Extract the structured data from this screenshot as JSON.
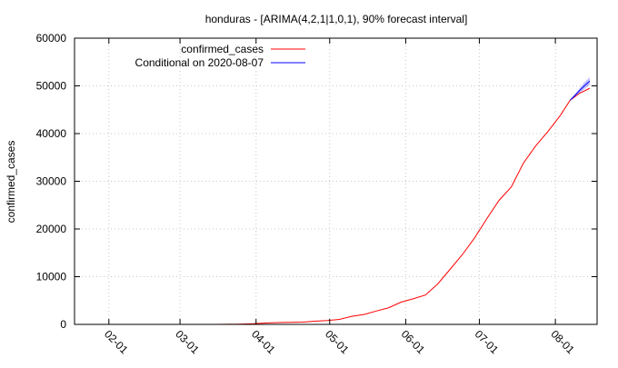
{
  "chart_data": {
    "type": "line",
    "title": "honduras -  [ARIMA(4,2,1|1,0,1), 90% forecast interval]",
    "xlabel": "",
    "ylabel": "confirmed_cases",
    "ylim": [
      0,
      60000
    ],
    "yticks": [
      "0",
      "10000",
      "20000",
      "30000",
      "40000",
      "50000",
      "60000"
    ],
    "xlim": [
      "2020-01-18",
      "2020-08-18"
    ],
    "xticks": [
      {
        "date": "2020-02-01",
        "label": "02-01"
      },
      {
        "date": "2020-03-01",
        "label": "03-01"
      },
      {
        "date": "2020-04-01",
        "label": "04-01"
      },
      {
        "date": "2020-05-01",
        "label": "05-01"
      },
      {
        "date": "2020-06-01",
        "label": "06-01"
      },
      {
        "date": "2020-07-01",
        "label": "07-01"
      },
      {
        "date": "2020-08-01",
        "label": "08-01"
      }
    ],
    "grid": true,
    "legend_position": "top-left",
    "series": [
      {
        "name": "confirmed_cases",
        "color": "#ff0000",
        "points": [
          [
            "2020-03-11",
            2
          ],
          [
            "2020-03-15",
            8
          ],
          [
            "2020-03-20",
            26
          ],
          [
            "2020-03-25",
            52
          ],
          [
            "2020-03-31",
            141
          ],
          [
            "2020-04-05",
            298
          ],
          [
            "2020-04-10",
            392
          ],
          [
            "2020-04-15",
            426
          ],
          [
            "2020-04-20",
            472
          ],
          [
            "2020-04-25",
            661
          ],
          [
            "2020-04-30",
            804
          ],
          [
            "2020-05-05",
            1055
          ],
          [
            "2020-05-10",
            1685
          ],
          [
            "2020-05-15",
            2080
          ],
          [
            "2020-05-20",
            2798
          ],
          [
            "2020-05-25",
            3477
          ],
          [
            "2020-05-30",
            4640
          ],
          [
            "2020-06-04",
            5362
          ],
          [
            "2020-06-09",
            6155
          ],
          [
            "2020-06-14",
            8455
          ],
          [
            "2020-06-19",
            11500
          ],
          [
            "2020-06-24",
            14571
          ],
          [
            "2020-06-29",
            18082
          ],
          [
            "2020-07-04",
            22116
          ],
          [
            "2020-07-09",
            25978
          ],
          [
            "2020-07-14",
            28789
          ],
          [
            "2020-07-19",
            33835
          ],
          [
            "2020-07-24",
            37438
          ],
          [
            "2020-07-29",
            40460
          ],
          [
            "2020-08-03",
            43794
          ],
          [
            "2020-08-07",
            46973
          ],
          [
            "2020-08-11",
            48500
          ],
          [
            "2020-08-15",
            49500
          ]
        ]
      },
      {
        "name": "Conditional on 2020-08-07",
        "color": "#0000ff",
        "points": [
          [
            "2020-08-07",
            46973
          ],
          [
            "2020-08-09",
            48000
          ],
          [
            "2020-08-11",
            49100
          ],
          [
            "2020-08-13",
            50100
          ],
          [
            "2020-08-15",
            51000
          ]
        ],
        "lower": [
          [
            "2020-08-07",
            46973
          ],
          [
            "2020-08-09",
            47700
          ],
          [
            "2020-08-11",
            48600
          ],
          [
            "2020-08-13",
            49400
          ],
          [
            "2020-08-15",
            50200
          ]
        ],
        "upper": [
          [
            "2020-08-07",
            46973
          ],
          [
            "2020-08-09",
            48300
          ],
          [
            "2020-08-11",
            49600
          ],
          [
            "2020-08-13",
            50800
          ],
          [
            "2020-08-15",
            51800
          ]
        ]
      }
    ]
  }
}
